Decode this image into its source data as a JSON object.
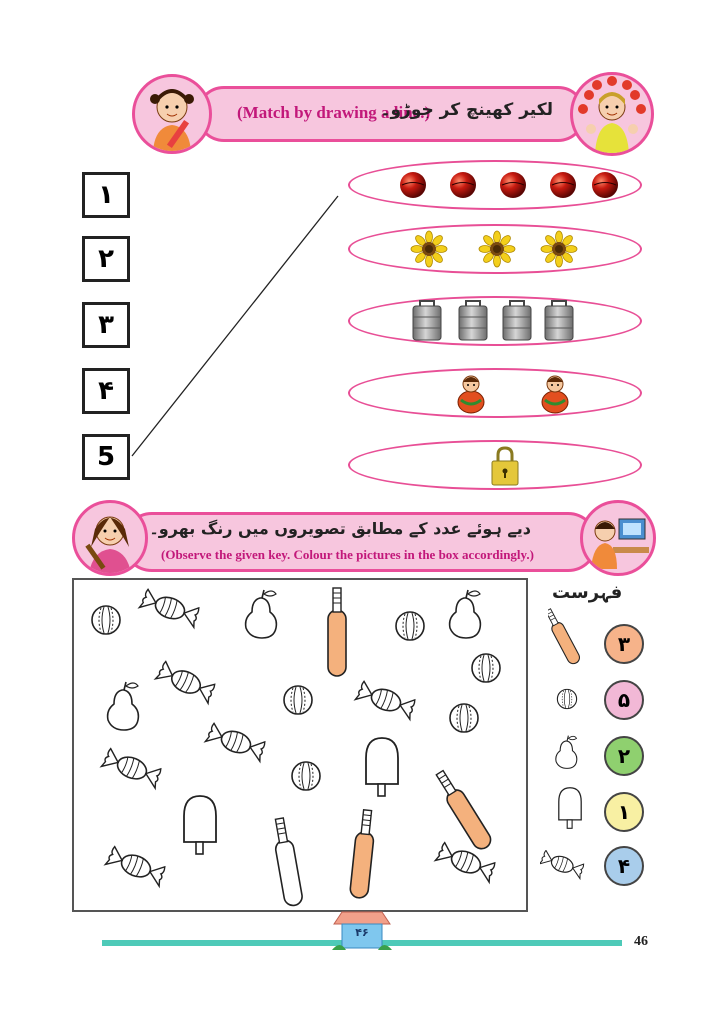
{
  "section1": {
    "title_en": "(Match by drawing a line.)",
    "title_ur": "لکیر کھینچ کر جوڑو۔",
    "numbers": [
      "۱",
      "۲",
      "۳",
      "۴",
      "5"
    ],
    "rows": [
      {
        "item": "ball",
        "count": 5
      },
      {
        "item": "sunflower",
        "count": 3
      },
      {
        "item": "tiffin-box",
        "count": 4
      },
      {
        "item": "doll",
        "count": 2
      },
      {
        "item": "padlock",
        "count": 1
      }
    ]
  },
  "section2": {
    "title_ur": "دیے ہوئے عدد کے مطابق تصویروں میں رنگ بھرو۔",
    "title_en": "(Observe the given key. Colour the pictures in the box accordingly.)"
  },
  "key": {
    "title": "فہرست",
    "entries": [
      {
        "icon": "bat-icon",
        "number": "۳",
        "color": "#f6b38a"
      },
      {
        "icon": "ball-icon",
        "number": "۵",
        "color": "#f2b8d6"
      },
      {
        "icon": "pear-icon",
        "number": "۲",
        "color": "#8fd06f"
      },
      {
        "icon": "ice-lolly-icon",
        "number": "۱",
        "color": "#f8f0a3"
      },
      {
        "icon": "candy-icon",
        "number": "۴",
        "color": "#a9cdeb"
      }
    ]
  },
  "footer": {
    "page_number": "46",
    "page_number_ur": "۴۶"
  },
  "colors": {
    "accent_pink": "#ea4f9a",
    "banner_fill": "#f7c6de",
    "footer_teal": "#4ecab8",
    "bat_fill": "#f4b17d"
  }
}
